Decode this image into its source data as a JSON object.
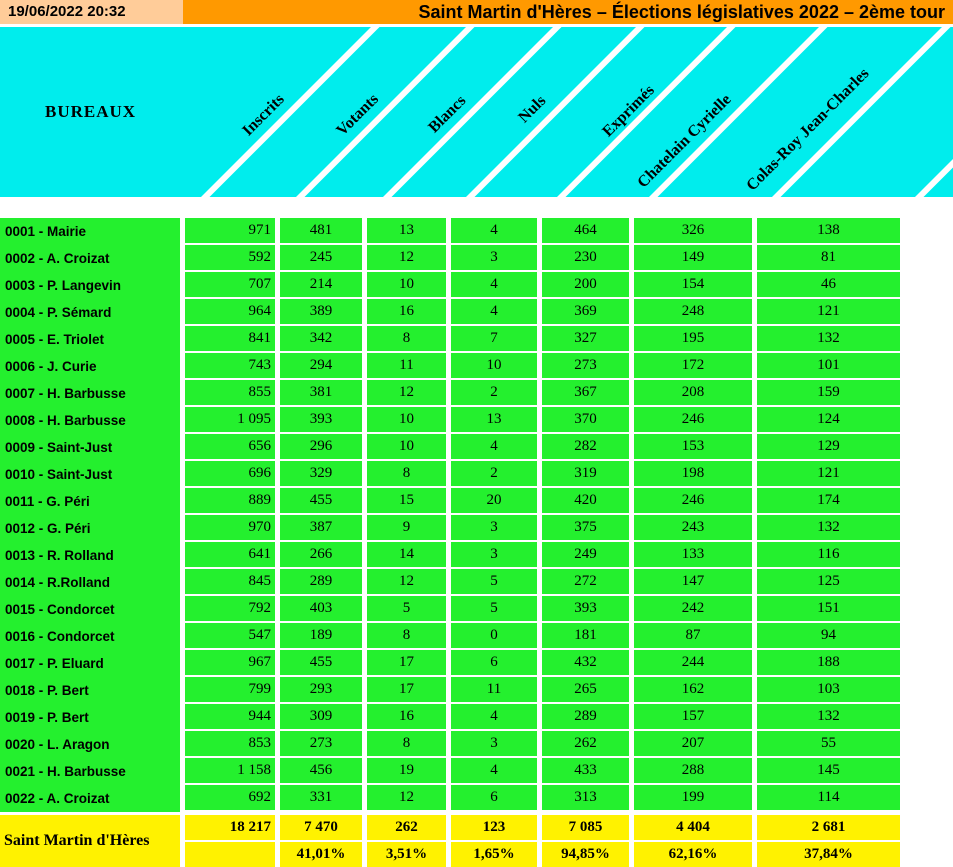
{
  "title_bar": {
    "datetime": "19/06/2022 20:32",
    "title": "Saint Martin d'Hères – Élections législatives 2022 – 2ème tour"
  },
  "colors": {
    "orange": "#FF9900",
    "peach": "#FFCC99",
    "cyan": "#00EDED",
    "green": "#24F02E",
    "yellow": "#FFF200"
  },
  "header": {
    "bureaux_label": "BUREAUX",
    "columns": [
      "Inscrits",
      "Votants",
      "Blancs",
      "Nuls",
      "Exprimés",
      "Chatelain Cyrielle",
      "Colas-Roy Jean-Charles"
    ]
  },
  "table": {
    "rows": [
      {
        "bureau": "0001 - Mairie",
        "values": [
          "971",
          "481",
          "13",
          "4",
          "464",
          "326",
          "138"
        ]
      },
      {
        "bureau": "0002 - A. Croizat",
        "values": [
          "592",
          "245",
          "12",
          "3",
          "230",
          "149",
          "81"
        ]
      },
      {
        "bureau": "0003 - P. Langevin",
        "values": [
          "707",
          "214",
          "10",
          "4",
          "200",
          "154",
          "46"
        ]
      },
      {
        "bureau": "0004 - P. Sémard",
        "values": [
          "964",
          "389",
          "16",
          "4",
          "369",
          "248",
          "121"
        ]
      },
      {
        "bureau": "0005 - E. Triolet",
        "values": [
          "841",
          "342",
          "8",
          "7",
          "327",
          "195",
          "132"
        ]
      },
      {
        "bureau": "0006 - J. Curie",
        "values": [
          "743",
          "294",
          "11",
          "10",
          "273",
          "172",
          "101"
        ]
      },
      {
        "bureau": "0007 - H. Barbusse",
        "values": [
          "855",
          "381",
          "12",
          "2",
          "367",
          "208",
          "159"
        ]
      },
      {
        "bureau": "0008 - H. Barbusse",
        "values": [
          "1 095",
          "393",
          "10",
          "13",
          "370",
          "246",
          "124"
        ]
      },
      {
        "bureau": "0009 - Saint-Just",
        "values": [
          "656",
          "296",
          "10",
          "4",
          "282",
          "153",
          "129"
        ]
      },
      {
        "bureau": "0010 - Saint-Just",
        "values": [
          "696",
          "329",
          "8",
          "2",
          "319",
          "198",
          "121"
        ]
      },
      {
        "bureau": "0011 - G. Péri",
        "values": [
          "889",
          "455",
          "15",
          "20",
          "420",
          "246",
          "174"
        ]
      },
      {
        "bureau": "0012 - G. Péri",
        "values": [
          "970",
          "387",
          "9",
          "3",
          "375",
          "243",
          "132"
        ]
      },
      {
        "bureau": "0013 - R. Rolland",
        "values": [
          "641",
          "266",
          "14",
          "3",
          "249",
          "133",
          "116"
        ]
      },
      {
        "bureau": "0014 - R.Rolland",
        "values": [
          "845",
          "289",
          "12",
          "5",
          "272",
          "147",
          "125"
        ]
      },
      {
        "bureau": "0015 - Condorcet",
        "values": [
          "792",
          "403",
          "5",
          "5",
          "393",
          "242",
          "151"
        ]
      },
      {
        "bureau": "0016 - Condorcet",
        "values": [
          "547",
          "189",
          "8",
          "0",
          "181",
          "87",
          "94"
        ]
      },
      {
        "bureau": "0017 - P. Eluard",
        "values": [
          "967",
          "455",
          "17",
          "6",
          "432",
          "244",
          "188"
        ]
      },
      {
        "bureau": "0018 - P. Bert",
        "values": [
          "799",
          "293",
          "17",
          "11",
          "265",
          "162",
          "103"
        ]
      },
      {
        "bureau": "0019 - P. Bert",
        "values": [
          "944",
          "309",
          "16",
          "4",
          "289",
          "157",
          "132"
        ]
      },
      {
        "bureau": "0020 - L. Aragon",
        "values": [
          "853",
          "273",
          "8",
          "3",
          "262",
          "207",
          "55"
        ]
      },
      {
        "bureau": "0021 - H. Barbusse",
        "values": [
          "1 158",
          "456",
          "19",
          "4",
          "433",
          "288",
          "145"
        ]
      },
      {
        "bureau": "0022 - A. Croizat",
        "values": [
          "692",
          "331",
          "12",
          "6",
          "313",
          "199",
          "114"
        ]
      }
    ],
    "totals_label": "Saint Martin d'Hères",
    "totals": [
      "18 217",
      "7 470",
      "262",
      "123",
      "7 085",
      "4 404",
      "2 681"
    ],
    "percentages": [
      "",
      "41,01%",
      "3,51%",
      "1,65%",
      "94,85%",
      "62,16%",
      "37,84%"
    ]
  }
}
